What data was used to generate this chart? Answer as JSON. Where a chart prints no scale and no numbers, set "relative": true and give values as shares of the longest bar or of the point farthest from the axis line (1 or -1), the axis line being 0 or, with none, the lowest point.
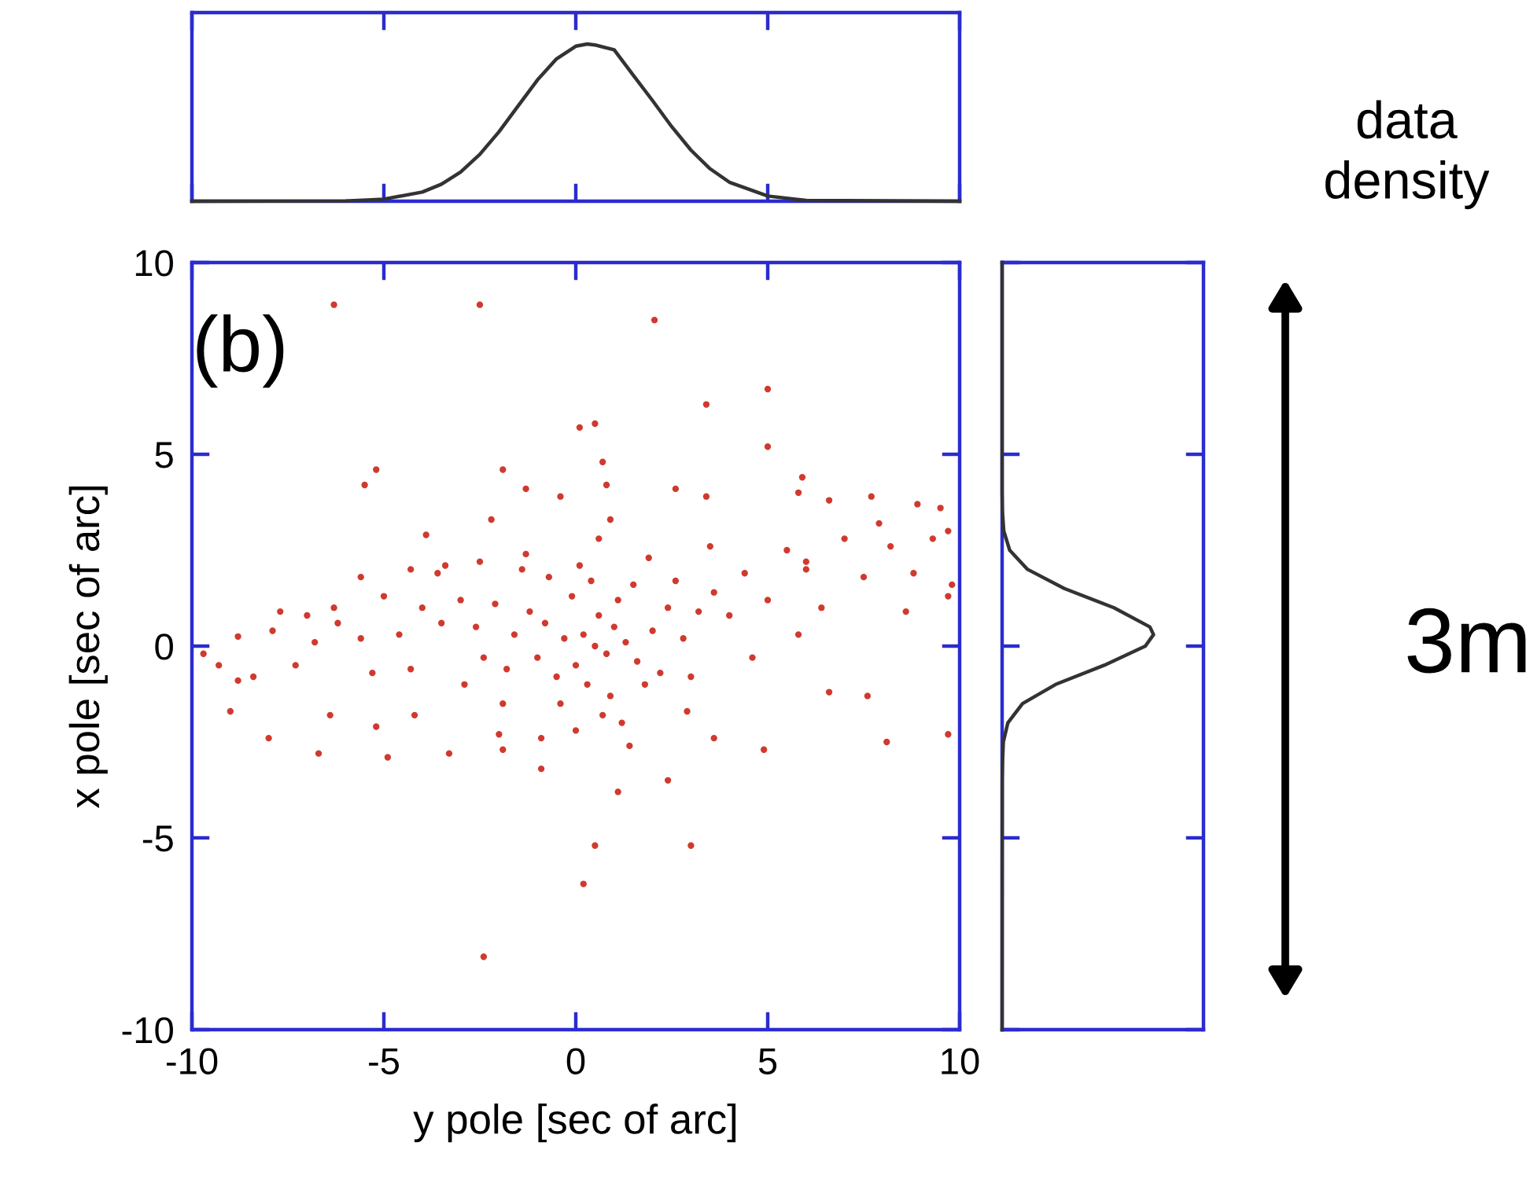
{
  "chart_data": [
    {
      "type": "line",
      "relative": true,
      "color": "#333333",
      "xlim": [
        -10,
        10
      ],
      "xticks": [
        -10,
        -5,
        0,
        5,
        10
      ],
      "tick_labels": false,
      "annotations": [
        "data\ndensity"
      ],
      "x": [
        -10,
        -6,
        -5,
        -4,
        -3.5,
        -3,
        -2.5,
        -2,
        -1.5,
        -1,
        -0.5,
        0,
        0.3,
        0.5,
        1,
        1.5,
        2,
        2.5,
        3,
        3.5,
        4,
        5,
        6,
        10
      ],
      "values": [
        0,
        0.002,
        0.013,
        0.058,
        0.108,
        0.186,
        0.298,
        0.442,
        0.607,
        0.771,
        0.906,
        0.986,
        1,
        0.994,
        0.963,
        0.801,
        0.64,
        0.474,
        0.325,
        0.206,
        0.121,
        0.033,
        0.005,
        0
      ]
    },
    {
      "type": "scatter",
      "color": "#d03a2e",
      "marker": "circle",
      "xlabel": "y pole [sec of arc]",
      "ylabel": "x pole [sec of arc]",
      "xlim": [
        -10,
        10
      ],
      "ylim": [
        -10,
        10
      ],
      "xticks": [
        -10,
        -5,
        0,
        5,
        10
      ],
      "yticks": [
        -10,
        -5,
        0,
        5,
        10
      ],
      "annotations": [
        "(b)"
      ],
      "x": [
        -6.3,
        -2.5,
        2.05,
        3.4,
        5.0,
        -5.2,
        -5.5,
        0.1,
        0.5,
        0.7,
        0.8,
        0.9,
        -1.9,
        -1.3,
        -0.4,
        -2.2,
        -3.9,
        5.0,
        5.9,
        5.8,
        7.7,
        8.9,
        9.5,
        9.7,
        9.8,
        9.7,
        8.6,
        7.9,
        6.0,
        6.6,
        2.6,
        3.4,
        9.7,
        8.1,
        7.6,
        6.6,
        4.9,
        3.0,
        2.4,
        1.1,
        0.5,
        0.2,
        3.6,
        -2.4,
        -0.9,
        -1.9,
        -3.3,
        -4.9,
        -6.7,
        -8.0,
        -9.0,
        -9.7,
        -8.8,
        -6.4,
        -4.2,
        -5.2,
        -2.0,
        -8.8,
        -7.7,
        -7.0,
        -6.2,
        -5.6,
        -4.3,
        -3.4,
        -2.5,
        -1.4,
        0.5,
        0.2,
        0.8,
        1.0,
        -0.3,
        0.0,
        0.6,
        1.3,
        -0.8,
        1.6,
        0.3,
        -0.5,
        1.1,
        -1.2,
        2.0,
        -1.6,
        0.9,
        -0.1,
        2.4,
        -2.1,
        1.8,
        -1.0,
        0.4,
        2.8,
        -2.6,
        0.7,
        -0.4,
        1.5,
        3.2,
        -3.0,
        2.2,
        -1.8,
        0.1,
        1.2,
        -0.7,
        3.6,
        -3.5,
        2.6,
        -2.4,
        0.0,
        4.0,
        -4.0,
        1.9,
        -1.3,
        4.4,
        -4.6,
        3.0,
        -2.9,
        5.0,
        -5.0,
        5.5,
        -5.6,
        6.0,
        -6.3,
        6.4,
        -6.8,
        7.0,
        -7.3,
        7.5,
        -7.9,
        8.2,
        -8.4,
        8.8,
        -9.3,
        9.3,
        5.8,
        -5.3,
        4.6,
        -4.3,
        3.5,
        -3.6,
        1.4,
        -0.9,
        0.6,
        2.9,
        -1.9
      ],
      "values": [
        8.9,
        8.9,
        8.5,
        6.3,
        6.7,
        4.6,
        4.2,
        5.7,
        5.8,
        4.8,
        4.2,
        3.3,
        4.6,
        4.1,
        3.9,
        3.3,
        2.9,
        5.2,
        4.4,
        4.0,
        3.9,
        3.7,
        3.6,
        3.0,
        1.6,
        1.3,
        0.9,
        3.2,
        2.2,
        3.8,
        4.1,
        3.9,
        -2.3,
        -2.5,
        -1.3,
        -1.2,
        -2.7,
        -5.2,
        -3.5,
        -3.8,
        -5.2,
        -6.2,
        -2.4,
        -8.1,
        -3.2,
        -2.7,
        -2.8,
        -2.9,
        -2.8,
        -2.4,
        -1.7,
        -0.2,
        -0.9,
        -1.8,
        -1.8,
        -2.1,
        -2.3,
        0.25,
        0.9,
        0.8,
        0.6,
        1.8,
        2.0,
        2.1,
        2.2,
        2.0,
        0.0,
        0.3,
        -0.2,
        0.5,
        0.2,
        -0.5,
        0.8,
        0.1,
        0.6,
        -0.4,
        -1.0,
        -0.8,
        1.2,
        0.9,
        0.4,
        0.3,
        -1.3,
        1.3,
        1.0,
        1.1,
        -1.0,
        -0.3,
        1.7,
        0.2,
        0.5,
        -1.8,
        -1.5,
        1.6,
        0.9,
        1.2,
        -0.7,
        -0.6,
        2.1,
        -2.0,
        1.8,
        1.4,
        0.6,
        1.7,
        -0.3,
        -2.2,
        0.8,
        1.0,
        2.3,
        2.4,
        1.9,
        0.3,
        -0.8,
        -1.0,
        1.2,
        1.3,
        2.5,
        0.2,
        2.0,
        1.0,
        1.0,
        0.1,
        2.8,
        -0.5,
        1.8,
        0.4,
        2.6,
        -0.8,
        1.9,
        -0.5,
        2.8,
        0.3,
        -0.7,
        -0.3,
        -0.6,
        2.6,
        1.9,
        -2.6,
        -2.4,
        2.8,
        -1.7,
        -1.5
      ]
    },
    {
      "type": "line",
      "relative": true,
      "orientation": "horizontal",
      "color": "#333333",
      "ylim": [
        -10,
        10
      ],
      "yticks": [
        -10,
        -5,
        0,
        5,
        10
      ],
      "tick_labels": false,
      "annotations": [
        "3m"
      ],
      "x": [
        -10,
        -3.5,
        -3,
        -2.5,
        -2,
        -1.5,
        -1,
        -0.5,
        0,
        0.3,
        0.5,
        1,
        1.5,
        2,
        2.5,
        3,
        3.5,
        4,
        10
      ],
      "values": [
        0,
        0.001,
        0.003,
        0.008,
        0.038,
        0.135,
        0.353,
        0.674,
        0.946,
        1,
        0.976,
        0.739,
        0.411,
        0.168,
        0.05,
        0.011,
        0.002,
        0,
        0
      ]
    }
  ]
}
